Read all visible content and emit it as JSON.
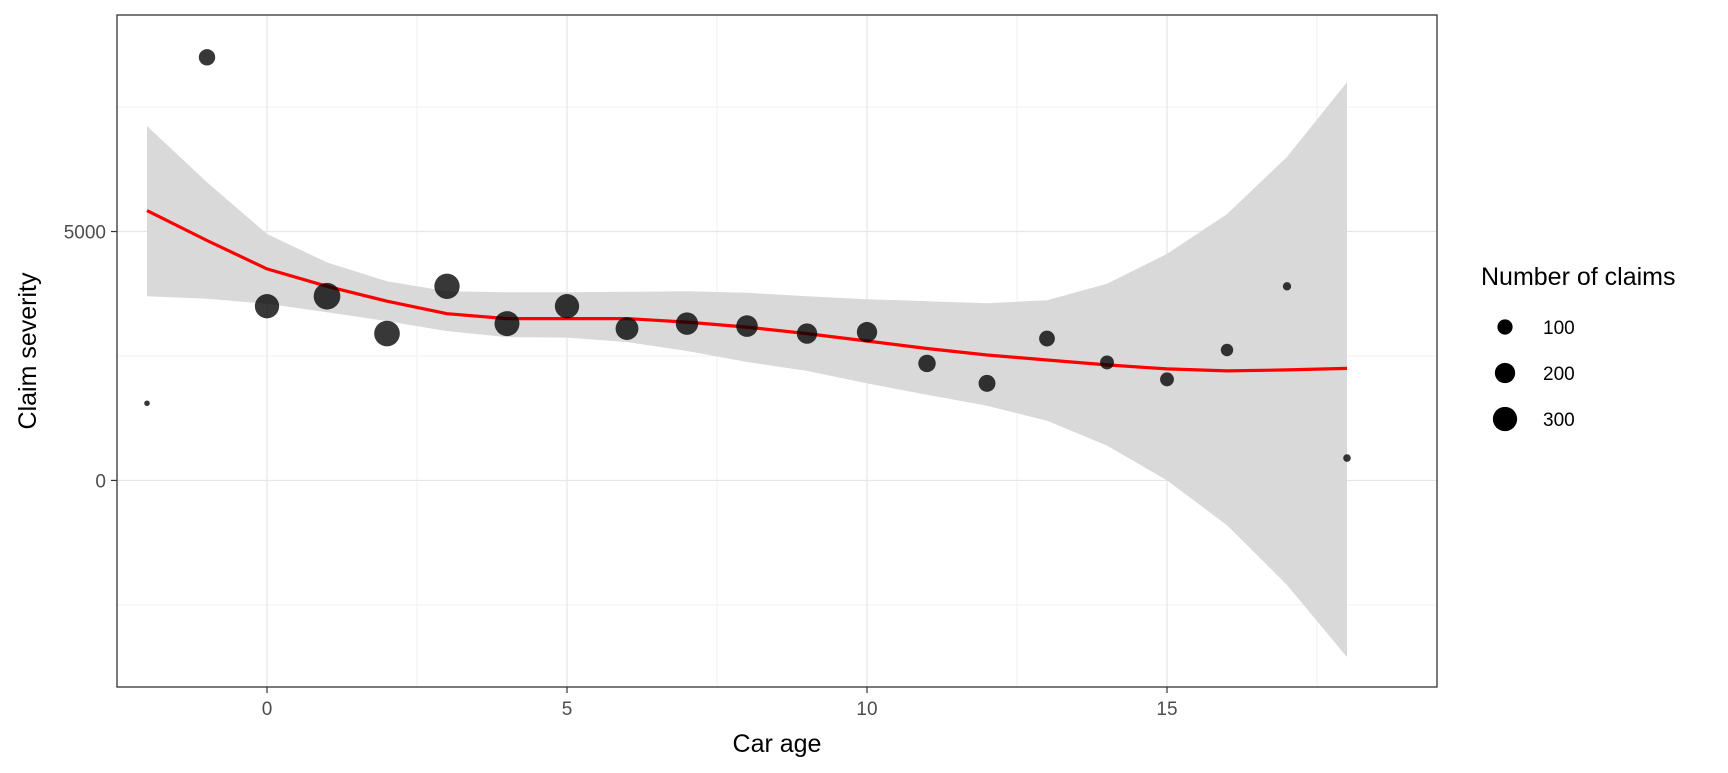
{
  "chart_data": {
    "type": "scatter",
    "title": "",
    "xlabel": "Car age",
    "ylabel": "Claim severity",
    "xlim": [
      -2.5,
      19.5
    ],
    "ylim": [
      -4150,
      9350
    ],
    "x_ticks": [
      0,
      5,
      10,
      15
    ],
    "y_ticks": [
      0,
      5000
    ],
    "grid": true,
    "theme": "bw",
    "points": [
      {
        "x": -2,
        "y": 1550,
        "n": 5
      },
      {
        "x": -1,
        "y": 8500,
        "n": 120
      },
      {
        "x": 0,
        "y": 3500,
        "n": 300
      },
      {
        "x": 1,
        "y": 3700,
        "n": 370
      },
      {
        "x": 2,
        "y": 2950,
        "n": 340
      },
      {
        "x": 3,
        "y": 3900,
        "n": 330
      },
      {
        "x": 4,
        "y": 3150,
        "n": 320
      },
      {
        "x": 5,
        "y": 3500,
        "n": 300
      },
      {
        "x": 6,
        "y": 3050,
        "n": 260
      },
      {
        "x": 7,
        "y": 3150,
        "n": 250
      },
      {
        "x": 8,
        "y": 3100,
        "n": 230
      },
      {
        "x": 9,
        "y": 2950,
        "n": 200
      },
      {
        "x": 10,
        "y": 2980,
        "n": 200
      },
      {
        "x": 11,
        "y": 2350,
        "n": 140
      },
      {
        "x": 12,
        "y": 1950,
        "n": 130
      },
      {
        "x": 13,
        "y": 2850,
        "n": 110
      },
      {
        "x": 14,
        "y": 2370,
        "n": 80
      },
      {
        "x": 15,
        "y": 2030,
        "n": 80
      },
      {
        "x": 16,
        "y": 2620,
        "n": 60
      },
      {
        "x": 17,
        "y": 3900,
        "n": 20
      },
      {
        "x": 18,
        "y": 450,
        "n": 15
      }
    ],
    "smooth": {
      "color": "#ff0000",
      "fill_color": "#d9d9d9",
      "x": [
        -2,
        -1,
        0,
        1,
        2,
        3,
        4,
        5,
        6,
        7,
        8,
        9,
        10,
        11,
        12,
        13,
        14,
        15,
        16,
        17,
        18
      ],
      "y": [
        5420,
        4820,
        4250,
        3900,
        3600,
        3350,
        3250,
        3250,
        3250,
        3180,
        3080,
        2950,
        2800,
        2650,
        2520,
        2420,
        2320,
        2240,
        2200,
        2220,
        2250
      ],
      "lower": [
        3700,
        3650,
        3550,
        3380,
        3200,
        3000,
        2880,
        2870,
        2780,
        2600,
        2380,
        2200,
        1950,
        1720,
        1500,
        1200,
        700,
        0,
        -900,
        -2100,
        -3550
      ],
      "upper": [
        7120,
        5990,
        4950,
        4380,
        4000,
        3800,
        3780,
        3780,
        3790,
        3800,
        3770,
        3700,
        3640,
        3600,
        3560,
        3620,
        3950,
        4550,
        5350,
        6500,
        8000
      ]
    },
    "legend": {
      "title": "Number of claims",
      "position": "right",
      "entries": [
        {
          "label": "100",
          "n": 100
        },
        {
          "label": "200",
          "n": 200
        },
        {
          "label": "300",
          "n": 300
        }
      ]
    }
  }
}
